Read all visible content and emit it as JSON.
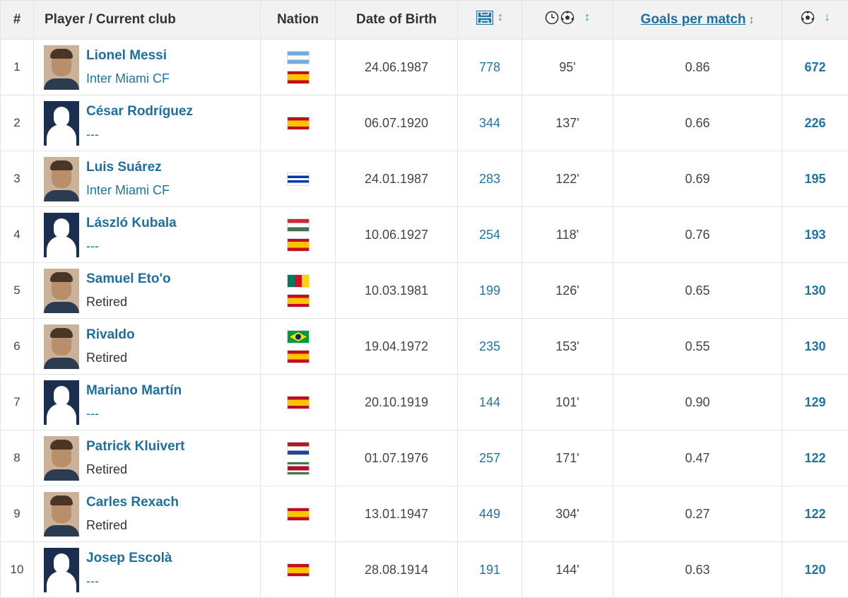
{
  "header": {
    "rank": "#",
    "player": "Player / Current club",
    "nation": "Nation",
    "dob": "Date of Birth",
    "goals_per_match": "Goals per match"
  },
  "icons": {
    "appearances": "pitch-icon",
    "minutes_per_goal": "clock-ball-icon",
    "goals": "ball-icon",
    "sort": "sort-arrows-icon",
    "sort_desc": "sort-down-icon"
  },
  "rows": [
    {
      "rank": "1",
      "name": "Lionel Messi",
      "club": "Inter Miami CF",
      "club_link": true,
      "photo": "photo",
      "nations": [
        "argentina",
        "spain"
      ],
      "dob": "24.06.1987",
      "apps": "778",
      "mpg": "95'",
      "gpm": "0.86",
      "goals": "672"
    },
    {
      "rank": "2",
      "name": "César Rodríguez",
      "club": "---",
      "club_link": true,
      "photo": "silhouette",
      "nations": [
        "spain"
      ],
      "dob": "06.07.1920",
      "apps": "344",
      "mpg": "137'",
      "gpm": "0.66",
      "goals": "226"
    },
    {
      "rank": "3",
      "name": "Luis Suárez",
      "club": "Inter Miami CF",
      "club_link": true,
      "photo": "photo",
      "nations": [
        "uruguay"
      ],
      "dob": "24.01.1987",
      "apps": "283",
      "mpg": "122'",
      "gpm": "0.69",
      "goals": "195"
    },
    {
      "rank": "4",
      "name": "László Kubala",
      "club": "---",
      "club_link": true,
      "photo": "silhouette",
      "nations": [
        "hungary",
        "spain"
      ],
      "dob": "10.06.1927",
      "apps": "254",
      "mpg": "118'",
      "gpm": "0.76",
      "goals": "193"
    },
    {
      "rank": "5",
      "name": "Samuel Eto'o",
      "club": "Retired",
      "club_link": false,
      "photo": "photo",
      "nations": [
        "cameroon",
        "spain"
      ],
      "dob": "10.03.1981",
      "apps": "199",
      "mpg": "126'",
      "gpm": "0.65",
      "goals": "130"
    },
    {
      "rank": "6",
      "name": "Rivaldo",
      "club": "Retired",
      "club_link": false,
      "photo": "photo",
      "nations": [
        "brazil",
        "spain"
      ],
      "dob": "19.04.1972",
      "apps": "235",
      "mpg": "153'",
      "gpm": "0.55",
      "goals": "130"
    },
    {
      "rank": "7",
      "name": "Mariano Martín",
      "club": "---",
      "club_link": true,
      "photo": "silhouette",
      "nations": [
        "spain"
      ],
      "dob": "20.10.1919",
      "apps": "144",
      "mpg": "101'",
      "gpm": "0.90",
      "goals": "129"
    },
    {
      "rank": "8",
      "name": "Patrick Kluivert",
      "club": "Retired",
      "club_link": false,
      "photo": "photo",
      "nations": [
        "netherlands",
        "suriname"
      ],
      "dob": "01.07.1976",
      "apps": "257",
      "mpg": "171'",
      "gpm": "0.47",
      "goals": "122"
    },
    {
      "rank": "9",
      "name": "Carles Rexach",
      "club": "Retired",
      "club_link": false,
      "photo": "photo",
      "nations": [
        "spain"
      ],
      "dob": "13.01.1947",
      "apps": "449",
      "mpg": "304'",
      "gpm": "0.27",
      "goals": "122"
    },
    {
      "rank": "10",
      "name": "Josep Escolà",
      "club": "---",
      "club_link": true,
      "photo": "silhouette",
      "nations": [
        "spain"
      ],
      "dob": "28.08.1914",
      "apps": "191",
      "mpg": "144'",
      "gpm": "0.63",
      "goals": "120"
    }
  ],
  "flags": {
    "argentina": {
      "type": "h",
      "colors": [
        "#74acdf",
        "#ffffff",
        "#74acdf"
      ]
    },
    "spain": {
      "type": "h",
      "colors": [
        "#c60b1e",
        "#ffc400",
        "#ffc400",
        "#c60b1e"
      ]
    },
    "uruguay": {
      "type": "h",
      "colors": [
        "#ffffff",
        "#0038a8",
        "#ffffff",
        "#0038a8",
        "#ffffff"
      ]
    },
    "hungary": {
      "type": "h",
      "colors": [
        "#ce2939",
        "#ffffff",
        "#477050"
      ]
    },
    "cameroon": {
      "type": "v",
      "colors": [
        "#007a5e",
        "#ce1126",
        "#fcd116"
      ]
    },
    "brazil": {
      "type": "brazil",
      "colors": [
        "#009c3b",
        "#ffdf00",
        "#002776"
      ]
    },
    "netherlands": {
      "type": "h",
      "colors": [
        "#ae1c28",
        "#ffffff",
        "#21468b"
      ]
    },
    "suriname": {
      "type": "h",
      "colors": [
        "#377e3f",
        "#ffffff",
        "#b40a2d",
        "#b40a2d",
        "#ffffff",
        "#377e3f"
      ]
    }
  }
}
